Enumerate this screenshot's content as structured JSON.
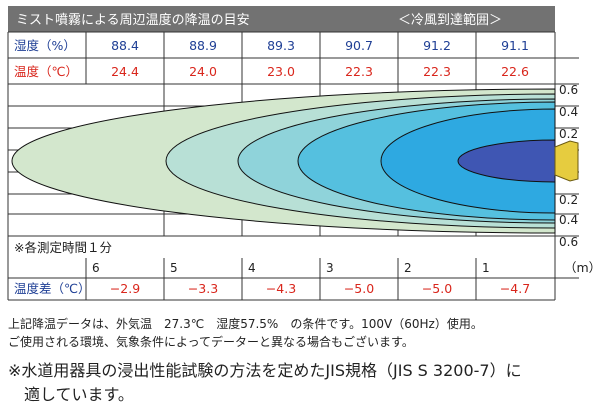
{
  "header": {
    "title": "ミスト噴霧による周辺温度の降温の目安",
    "range_label": "＜冷風到達範囲＞"
  },
  "table": {
    "humidity_label": "湿度（%）",
    "temperature_label": "温度（℃）",
    "humidity": [
      "88.4",
      "88.9",
      "89.3",
      "90.7",
      "91.2",
      "91.1"
    ],
    "temperature": [
      "24.4",
      "24.0",
      "23.0",
      "22.3",
      "22.3",
      "22.6"
    ],
    "time_note": "※各測定時間１分",
    "distance_ticks": [
      "6",
      "5",
      "4",
      "3",
      "2",
      "1"
    ],
    "distance_unit": "（m）",
    "diff_label": "温度差（℃）",
    "diff": [
      "−2.9",
      "−3.3",
      "−4.3",
      "−5.0",
      "−5.0",
      "−4.7"
    ]
  },
  "spread_axis": {
    "upper": [
      "0.6",
      "0.4",
      "0.2"
    ],
    "lower": [
      "0.2",
      "0.4",
      "0.6"
    ]
  },
  "colors": {
    "title_bg": "#727272",
    "humidity_text": "#1f3f95",
    "temperature_text": "#d9261c",
    "grid": "#333333",
    "zone_colors": [
      "#d3e7cd",
      "#b8e0d6",
      "#8fd3da",
      "#55c0df",
      "#2ea9e1",
      "#3f56b3"
    ],
    "nozzle": "#e6cc3f"
  },
  "notes": {
    "line1": "上記降温データは、外気温　27.3℃　湿度57.5%　の条件です。100V（60Hz）使用。",
    "line2": "ご使用される環境、気象条件によってデーターと異なる場合もございます。",
    "footnote_line1": "※水道用器具の浸出性能試験の方法を定めたJIS規格（JIS S 3200-7）に",
    "footnote_line2": "　適しています。"
  }
}
